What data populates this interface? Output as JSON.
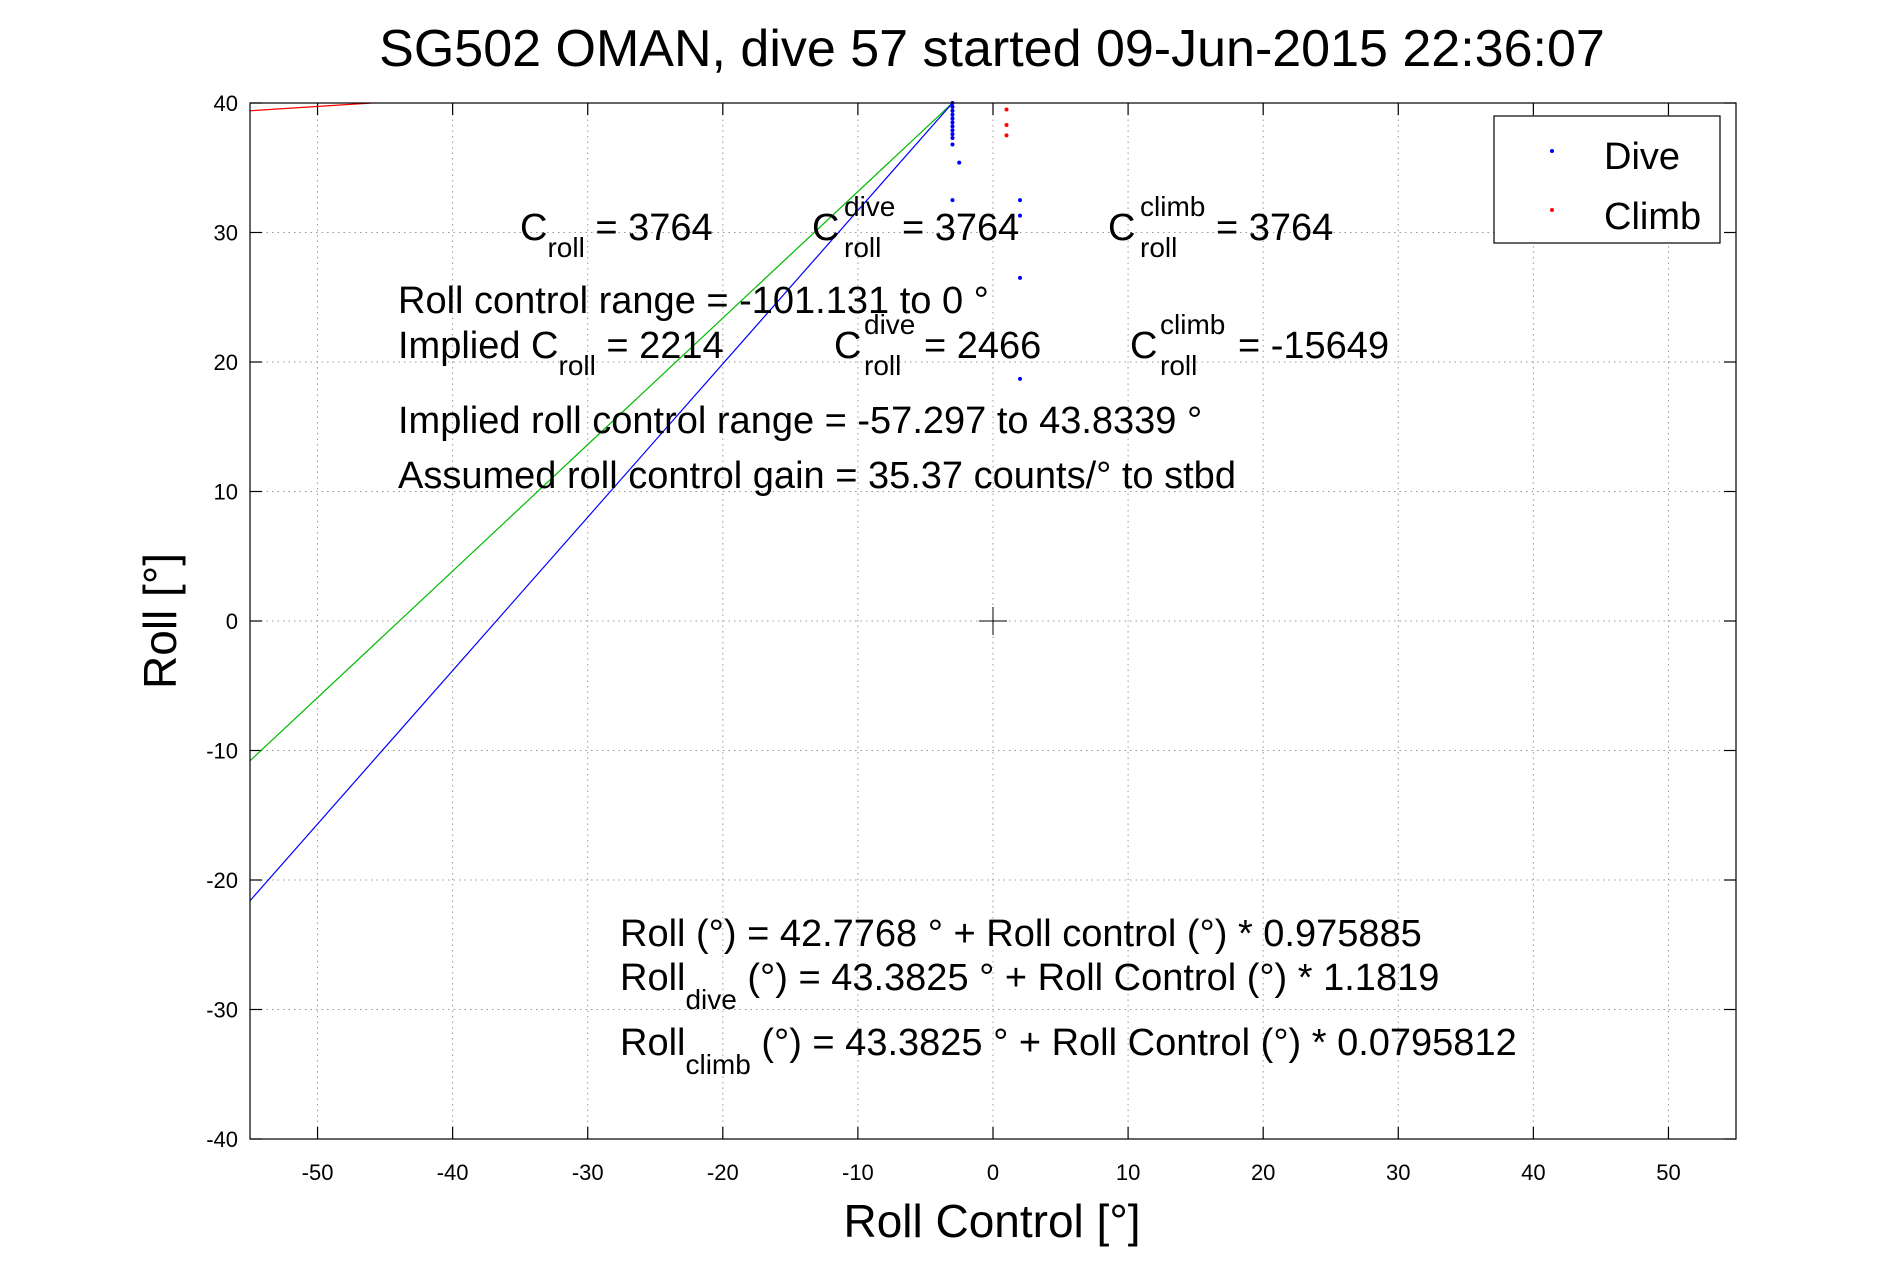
{
  "chart_data": {
    "type": "scatter",
    "title": "SG502 OMAN, dive 57 started 09-Jun-2015 22:36:07",
    "xlabel": "Roll Control [°]",
    "ylabel": "Roll [°]",
    "xlim": [
      -55,
      55
    ],
    "ylim": [
      -40,
      40
    ],
    "xticks": [
      -50,
      -40,
      -30,
      -20,
      -10,
      0,
      10,
      20,
      30,
      40,
      50
    ],
    "yticks": [
      -40,
      -30,
      -20,
      -10,
      0,
      10,
      20,
      30,
      40
    ],
    "grid": true,
    "legend_position": "top-right",
    "series": [
      {
        "name": "Dive",
        "color": "#0000ff",
        "marker": "dot",
        "points": [
          [
            -3,
            40
          ],
          [
            -3,
            39.7
          ],
          [
            -3,
            39.4
          ],
          [
            -3,
            39.1
          ],
          [
            -3,
            38.8
          ],
          [
            -3,
            38.5
          ],
          [
            -3,
            38.2
          ],
          [
            -3,
            37.9
          ],
          [
            -3,
            37.6
          ],
          [
            -3,
            37.3
          ],
          [
            -3,
            36.8
          ],
          [
            -2.5,
            35.4
          ],
          [
            -3,
            32.5
          ],
          [
            2,
            32.5
          ],
          [
            2,
            31.3
          ],
          [
            1.5,
            30
          ],
          [
            2,
            26.5
          ],
          [
            2,
            18.7
          ]
        ]
      },
      {
        "name": "Climb",
        "color": "#ff0000",
        "marker": "dot",
        "points": [
          [
            1,
            39.5
          ],
          [
            1,
            38.3
          ],
          [
            1,
            37.5
          ]
        ]
      }
    ],
    "lines": [
      {
        "color": "#00bb00",
        "x": [
          -55,
          -3
        ],
        "y": [
          -10.8,
          40
        ]
      },
      {
        "color": "#0000ff",
        "x": [
          -55,
          -3
        ],
        "y": [
          -21.6,
          40
        ]
      },
      {
        "color": "#ff0000",
        "x": [
          -55,
          -46
        ],
        "y": [
          39.4,
          40
        ]
      }
    ],
    "annotations": {
      "croll_row": [
        {
          "base": "C",
          "sub": "roll",
          "sup": "",
          "rest": " = 3764"
        },
        {
          "base": "C",
          "sub": "roll",
          "sup": "dive",
          "rest": " = 3764"
        },
        {
          "base": "C",
          "sub": "roll",
          "sup": "climb",
          "rest": " = 3764"
        }
      ],
      "roll_control_range": "Roll control range = -101.131 to 0 °",
      "implied_row": [
        {
          "base": "Implied C",
          "sub": "roll",
          "sup": "",
          "rest": " = 2214"
        },
        {
          "base": "C",
          "sub": "roll",
          "sup": "dive",
          "rest": " = 2466"
        },
        {
          "base": "C",
          "sub": "roll",
          "sup": "climb",
          "rest": " = -15649"
        }
      ],
      "implied_range": "Implied roll control range = -57.297 to 43.8339 °",
      "assumed_gain": "Assumed roll control gain = 35.37 counts/° to stbd",
      "fit_all": "Roll (°) = 42.7768 ° + Roll control (°) * 0.975885",
      "fit_dive": {
        "base": "Roll",
        "sub": "dive",
        "rest": " (°) = 43.3825 ° + Roll Control (°) * 1.1819"
      },
      "fit_climb": {
        "base": "Roll",
        "sub": "climb",
        "rest": " (°) = 43.3825 ° + Roll Control (°) * 0.0795812"
      }
    }
  }
}
